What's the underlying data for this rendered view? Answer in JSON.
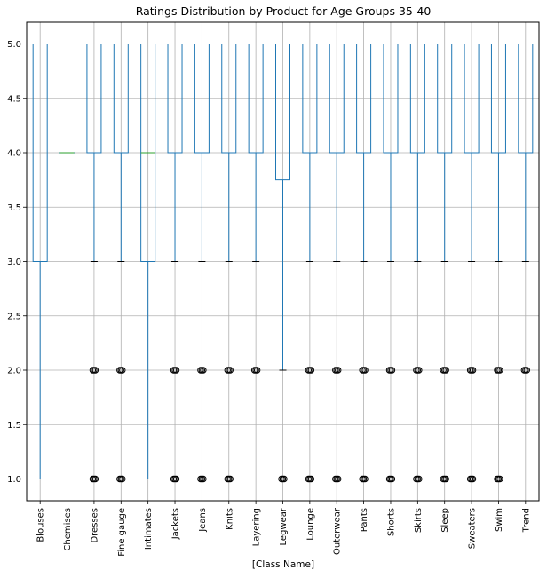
{
  "chart_data": {
    "type": "boxplot",
    "title": "Ratings Distribution by Product for Age Groups 35-40",
    "xlabel": "[Class Name]",
    "ylabel": "",
    "ylim": [
      0.8,
      5.2
    ],
    "yticks": [
      1.0,
      1.5,
      2.0,
      2.5,
      3.0,
      3.5,
      4.0,
      4.5,
      5.0
    ],
    "ytick_labels": [
      "1.0",
      "1.5",
      "2.0",
      "2.5",
      "3.0",
      "3.5",
      "4.0",
      "4.5",
      "5.0"
    ],
    "grid": true,
    "colors": {
      "box": "#1f77b4",
      "median": "#2ca02c",
      "grid": "#b0b0b0",
      "outlier": "#000000"
    },
    "categories": [
      "Blouses",
      "Chemises",
      "Dresses",
      "Fine gauge",
      "Intimates",
      "Jackets",
      "Jeans",
      "Knits",
      "Layering",
      "Legwear",
      "Lounge",
      "Outerwear",
      "Pants",
      "Shorts",
      "Skirts",
      "Sleep",
      "Sweaters",
      "Swim",
      "Trend"
    ],
    "boxes": [
      {
        "q1": 3.0,
        "median": 5.0,
        "q3": 5.0,
        "whisker_low": 1.0,
        "whisker_high": 5.0,
        "outliers": []
      },
      {
        "q1": 4.0,
        "median": 4.0,
        "q3": 4.0,
        "whisker_low": 4.0,
        "whisker_high": 4.0,
        "outliers": []
      },
      {
        "q1": 4.0,
        "median": 5.0,
        "q3": 5.0,
        "whisker_low": 3.0,
        "whisker_high": 5.0,
        "outliers": [
          1.0,
          2.0
        ]
      },
      {
        "q1": 4.0,
        "median": 5.0,
        "q3": 5.0,
        "whisker_low": 3.0,
        "whisker_high": 5.0,
        "outliers": [
          1.0,
          2.0
        ]
      },
      {
        "q1": 3.0,
        "median": 4.0,
        "q3": 5.0,
        "whisker_low": 1.0,
        "whisker_high": 5.0,
        "outliers": []
      },
      {
        "q1": 4.0,
        "median": 5.0,
        "q3": 5.0,
        "whisker_low": 3.0,
        "whisker_high": 5.0,
        "outliers": [
          1.0,
          2.0
        ]
      },
      {
        "q1": 4.0,
        "median": 5.0,
        "q3": 5.0,
        "whisker_low": 3.0,
        "whisker_high": 5.0,
        "outliers": [
          1.0,
          2.0
        ]
      },
      {
        "q1": 4.0,
        "median": 5.0,
        "q3": 5.0,
        "whisker_low": 3.0,
        "whisker_high": 5.0,
        "outliers": [
          1.0,
          2.0
        ]
      },
      {
        "q1": 4.0,
        "median": 5.0,
        "q3": 5.0,
        "whisker_low": 3.0,
        "whisker_high": 5.0,
        "outliers": [
          2.0
        ]
      },
      {
        "q1": 3.75,
        "median": 5.0,
        "q3": 5.0,
        "whisker_low": 2.0,
        "whisker_high": 5.0,
        "outliers": [
          1.0
        ]
      },
      {
        "q1": 4.0,
        "median": 5.0,
        "q3": 5.0,
        "whisker_low": 3.0,
        "whisker_high": 5.0,
        "outliers": [
          1.0,
          2.0
        ]
      },
      {
        "q1": 4.0,
        "median": 5.0,
        "q3": 5.0,
        "whisker_low": 3.0,
        "whisker_high": 5.0,
        "outliers": [
          1.0,
          2.0
        ]
      },
      {
        "q1": 4.0,
        "median": 5.0,
        "q3": 5.0,
        "whisker_low": 3.0,
        "whisker_high": 5.0,
        "outliers": [
          1.0,
          2.0
        ]
      },
      {
        "q1": 4.0,
        "median": 5.0,
        "q3": 5.0,
        "whisker_low": 3.0,
        "whisker_high": 5.0,
        "outliers": [
          1.0,
          2.0
        ]
      },
      {
        "q1": 4.0,
        "median": 5.0,
        "q3": 5.0,
        "whisker_low": 3.0,
        "whisker_high": 5.0,
        "outliers": [
          1.0,
          2.0
        ]
      },
      {
        "q1": 4.0,
        "median": 5.0,
        "q3": 5.0,
        "whisker_low": 3.0,
        "whisker_high": 5.0,
        "outliers": [
          1.0,
          2.0
        ]
      },
      {
        "q1": 4.0,
        "median": 5.0,
        "q3": 5.0,
        "whisker_low": 3.0,
        "whisker_high": 5.0,
        "outliers": [
          1.0,
          2.0
        ]
      },
      {
        "q1": 4.0,
        "median": 5.0,
        "q3": 5.0,
        "whisker_low": 3.0,
        "whisker_high": 5.0,
        "outliers": [
          1.0,
          2.0
        ]
      },
      {
        "q1": 4.0,
        "median": 5.0,
        "q3": 5.0,
        "whisker_low": 3.0,
        "whisker_high": 5.0,
        "outliers": [
          2.0
        ]
      }
    ]
  }
}
